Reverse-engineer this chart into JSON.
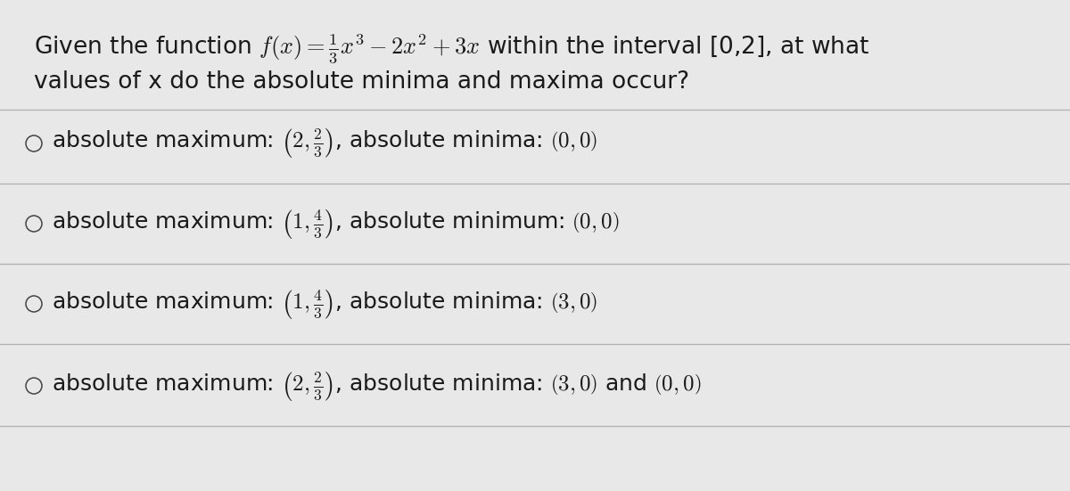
{
  "background_color": "#e8e8e8",
  "text_color": "#1a1a1a",
  "line_color": "#b0b0b0",
  "circle_color": "#444444",
  "font_size_question": 19,
  "font_size_options": 18,
  "question_line1": "Given the function $f(x) = \\frac{1}{3}x^3 - 2x^2 + 3x$ within the interval [0,2], at what",
  "question_line2": "values of x do the absolute minima and maxima occur?",
  "options": [
    "absolute maximum: $\\left(2, \\frac{2}{3}\\right)$, absolute minima: $\\left(0, 0\\right)$",
    "absolute maximum: $\\left(1, \\frac{4}{3}\\right)$, absolute minimum: $\\left(0, 0\\right)$",
    "absolute maximum: $\\left(1, \\frac{4}{3}\\right)$, absolute minima: $\\left(3, 0\\right)$",
    "absolute maximum: $\\left(2, \\frac{2}{3}\\right)$, absolute minima: $\\left(3, 0\\right)$ and $\\left(0, 0\\right)$"
  ]
}
